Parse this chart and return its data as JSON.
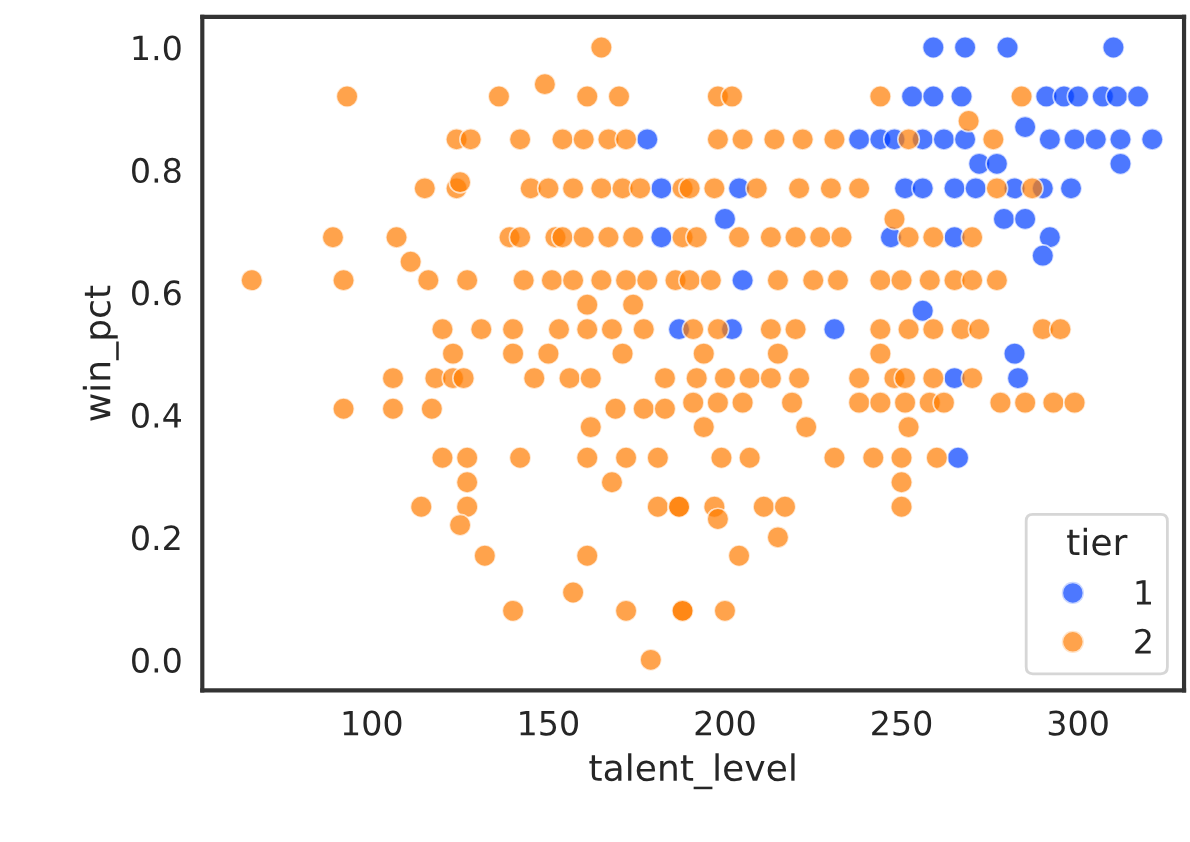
{
  "chart_data": {
    "type": "scatter",
    "xlabel": "talent_level",
    "ylabel": "win_pct",
    "legend_title": "tier",
    "legend": "bottom right",
    "grid": false,
    "marker": "circle",
    "xlim": [
      52,
      330
    ],
    "xticks": [
      100,
      150,
      200,
      250,
      300
    ],
    "ylim": [
      -0.05,
      1.05
    ],
    "yticks": [
      {
        "value": 0,
        "label": "0.0"
      },
      {
        "value": 0.2,
        "label": "0.2"
      },
      {
        "value": 0.4,
        "label": "0.4"
      },
      {
        "value": 0.6,
        "label": "0.6"
      },
      {
        "value": 0.8,
        "label": "0.8"
      },
      {
        "value": 1.0,
        "label": "1.0"
      }
    ],
    "series": [
      {
        "name": "1",
        "color": "#023eff",
        "x": [
          178,
          182,
          182,
          187,
          259,
          268,
          280,
          310,
          253,
          259,
          267,
          291,
          296,
          300,
          307,
          311,
          317,
          238,
          244,
          248,
          256,
          262,
          268,
          285,
          292,
          299,
          305,
          312,
          321,
          272,
          277,
          312,
          204,
          251,
          256,
          265,
          271,
          282,
          290,
          298,
          200,
          279,
          285,
          247,
          265,
          292,
          290,
          205,
          256,
          202,
          231,
          282,
          265,
          283,
          266
        ],
        "values": [
          0.85,
          0.77,
          0.69,
          0.54,
          1.0,
          1.0,
          1.0,
          1.0,
          0.92,
          0.92,
          0.92,
          0.92,
          0.92,
          0.92,
          0.92,
          0.92,
          0.92,
          0.85,
          0.85,
          0.85,
          0.85,
          0.85,
          0.85,
          0.87,
          0.85,
          0.85,
          0.85,
          0.85,
          0.85,
          0.81,
          0.81,
          0.81,
          0.77,
          0.77,
          0.77,
          0.77,
          0.77,
          0.77,
          0.77,
          0.77,
          0.72,
          0.72,
          0.72,
          0.69,
          0.69,
          0.69,
          0.66,
          0.62,
          0.57,
          0.54,
          0.54,
          0.5,
          0.46,
          0.46,
          0.33
        ]
      },
      {
        "name": "2",
        "color": "#ff7c00",
        "x": [
          165,
          93,
          136,
          149,
          161,
          170,
          124,
          128,
          142,
          154,
          160,
          167,
          172,
          115,
          124,
          125,
          145,
          150,
          157,
          165,
          171,
          176,
          188,
          89,
          107,
          139,
          142,
          152,
          154,
          160,
          167,
          174,
          188,
          66,
          92,
          111,
          116,
          127,
          143,
          151,
          157,
          165,
          172,
          178,
          186,
          120,
          131,
          140,
          153,
          161,
          168,
          177,
          161,
          174,
          198,
          202,
          244,
          284,
          269,
          198,
          205,
          214,
          222,
          231,
          252,
          276,
          190,
          197,
          209,
          221,
          230,
          238,
          277,
          287,
          248,
          192,
          204,
          213,
          220,
          227,
          233,
          252,
          259,
          270,
          190,
          196,
          215,
          225,
          232,
          244,
          250,
          258,
          265,
          270,
          277,
          191,
          198,
          213,
          220,
          244,
          252,
          259,
          267,
          272,
          290,
          295,
          123,
          140,
          150,
          171,
          106,
          118,
          123,
          126,
          146,
          156,
          162,
          183,
          92,
          106,
          117,
          169,
          177,
          183,
          162,
          120,
          127,
          142,
          161,
          172,
          181,
          127,
          168,
          114,
          127,
          125,
          181,
          187,
          132,
          161,
          157,
          140,
          172,
          188,
          179,
          194,
          215,
          244,
          192,
          200,
          207,
          213,
          221,
          238,
          248,
          251,
          259,
          270,
          191,
          198,
          205,
          219,
          238,
          244,
          251,
          258,
          262,
          278,
          285,
          293,
          299,
          194,
          223,
          252,
          199,
          207,
          231,
          242,
          250,
          260,
          250,
          187,
          197,
          211,
          217,
          250,
          198,
          215,
          204,
          188,
          200
        ],
        "values": [
          1.0,
          0.92,
          0.92,
          0.94,
          0.92,
          0.92,
          0.85,
          0.85,
          0.85,
          0.85,
          0.85,
          0.85,
          0.85,
          0.77,
          0.77,
          0.78,
          0.77,
          0.77,
          0.77,
          0.77,
          0.77,
          0.77,
          0.77,
          0.69,
          0.69,
          0.69,
          0.69,
          0.69,
          0.69,
          0.69,
          0.69,
          0.69,
          0.69,
          0.62,
          0.62,
          0.65,
          0.62,
          0.62,
          0.62,
          0.62,
          0.62,
          0.62,
          0.62,
          0.62,
          0.62,
          0.54,
          0.54,
          0.54,
          0.54,
          0.54,
          0.54,
          0.54,
          0.58,
          0.58,
          0.92,
          0.92,
          0.92,
          0.92,
          0.88,
          0.85,
          0.85,
          0.85,
          0.85,
          0.85,
          0.85,
          0.85,
          0.77,
          0.77,
          0.77,
          0.77,
          0.77,
          0.77,
          0.77,
          0.77,
          0.72,
          0.69,
          0.69,
          0.69,
          0.69,
          0.69,
          0.69,
          0.69,
          0.69,
          0.69,
          0.62,
          0.62,
          0.62,
          0.62,
          0.62,
          0.62,
          0.62,
          0.62,
          0.62,
          0.62,
          0.62,
          0.54,
          0.54,
          0.54,
          0.54,
          0.54,
          0.54,
          0.54,
          0.54,
          0.54,
          0.54,
          0.54,
          0.5,
          0.5,
          0.5,
          0.5,
          0.46,
          0.46,
          0.46,
          0.46,
          0.46,
          0.46,
          0.46,
          0.46,
          0.41,
          0.41,
          0.41,
          0.41,
          0.41,
          0.41,
          0.38,
          0.33,
          0.33,
          0.33,
          0.33,
          0.33,
          0.33,
          0.29,
          0.29,
          0.25,
          0.25,
          0.22,
          0.25,
          0.25,
          0.17,
          0.17,
          0.11,
          0.08,
          0.08,
          0.08,
          0.0,
          0.5,
          0.5,
          0.5,
          0.46,
          0.46,
          0.46,
          0.46,
          0.46,
          0.46,
          0.46,
          0.46,
          0.46,
          0.46,
          0.42,
          0.42,
          0.42,
          0.42,
          0.42,
          0.42,
          0.42,
          0.42,
          0.42,
          0.42,
          0.42,
          0.42,
          0.42,
          0.38,
          0.38,
          0.38,
          0.33,
          0.33,
          0.33,
          0.33,
          0.33,
          0.33,
          0.29,
          0.25,
          0.25,
          0.25,
          0.25,
          0.25,
          0.23,
          0.2,
          0.17,
          0.08,
          0.08
        ]
      }
    ]
  }
}
